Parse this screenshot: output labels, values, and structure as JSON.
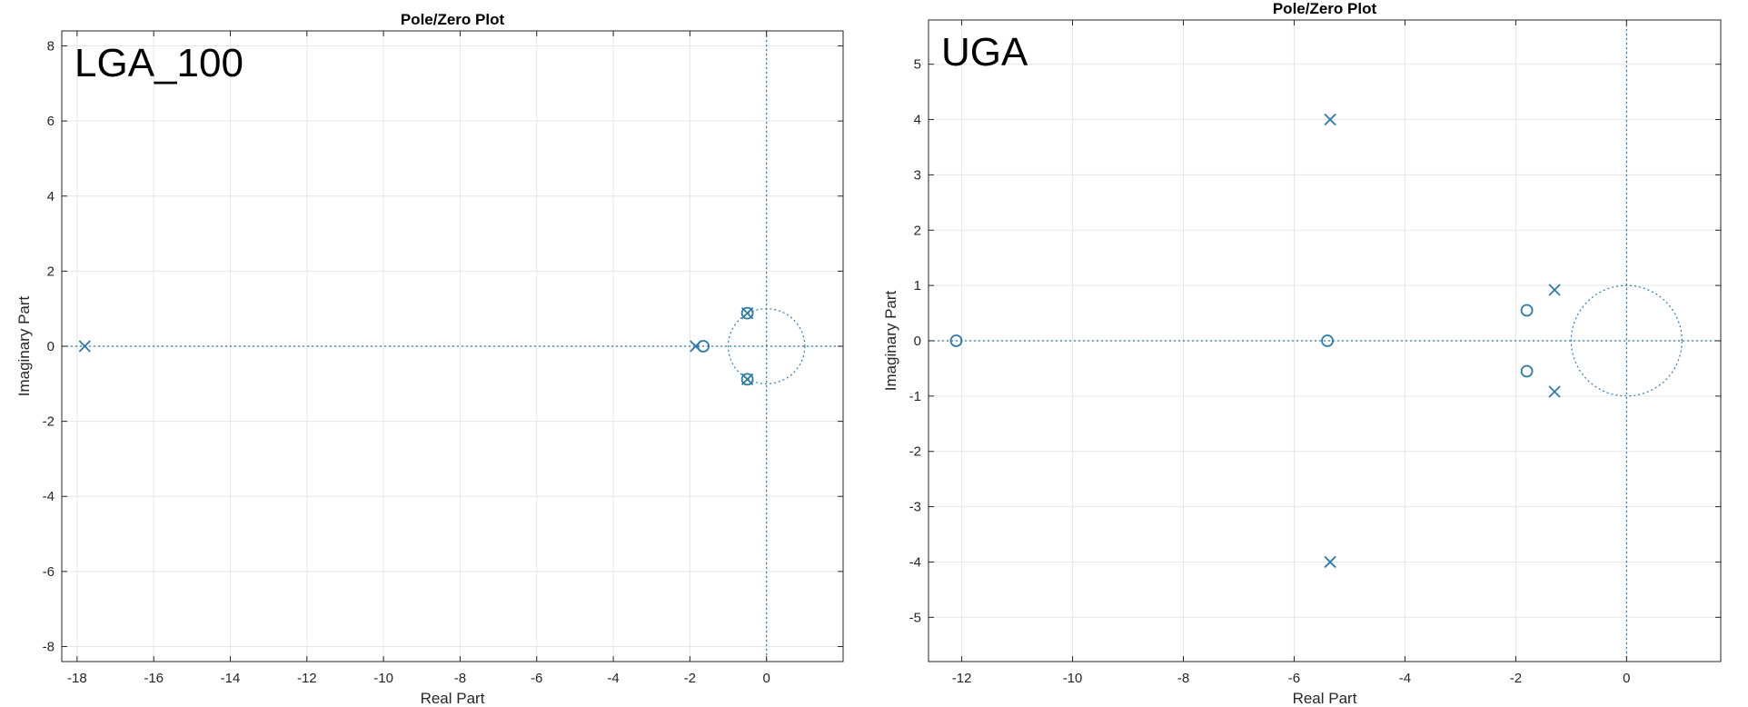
{
  "colors": {
    "marker": "#2a7bae",
    "grid": "#e6e6e6",
    "axis": "#262626",
    "background": "#ffffff"
  },
  "chart_data": [
    {
      "type": "scatter",
      "title": "Pole/Zero Plot",
      "panel_label": "LGA_100",
      "xlabel": "Real Part",
      "ylabel": "Imaginary Part",
      "xlim": [
        -18.4,
        2.0
      ],
      "ylim": [
        -8.4,
        8.4
      ],
      "xticks": [
        -18,
        -16,
        -14,
        -12,
        -10,
        -8,
        -6,
        -4,
        -2,
        0
      ],
      "yticks": [
        -8,
        -6,
        -4,
        -2,
        0,
        2,
        4,
        6,
        8
      ],
      "grid": true,
      "unit_circle": true,
      "series": [
        {
          "marker": "x",
          "points": [
            [
              -17.8,
              0
            ],
            [
              -1.85,
              0
            ],
            [
              -0.5,
              0.88
            ],
            [
              -0.5,
              -0.88
            ]
          ]
        },
        {
          "marker": "o",
          "points": [
            [
              -1.65,
              0
            ],
            [
              -0.5,
              0.88
            ],
            [
              -0.5,
              -0.88
            ]
          ]
        }
      ]
    },
    {
      "type": "scatter",
      "title": "Pole/Zero Plot",
      "panel_label": "UGA",
      "xlabel": "Real Part",
      "ylabel": "Imaginary Part",
      "xlim": [
        -12.6,
        1.7
      ],
      "ylim": [
        -5.8,
        5.8
      ],
      "xticks": [
        -12,
        -10,
        -8,
        -6,
        -4,
        -2,
        0
      ],
      "yticks": [
        -5,
        -4,
        -3,
        -2,
        -1,
        0,
        1,
        2,
        3,
        4,
        5
      ],
      "grid": true,
      "unit_circle": true,
      "series": [
        {
          "marker": "x",
          "points": [
            [
              -5.35,
              4.0
            ],
            [
              -5.35,
              -4.0
            ],
            [
              -1.3,
              0.92
            ],
            [
              -1.3,
              -0.92
            ]
          ]
        },
        {
          "marker": "o",
          "points": [
            [
              -12.1,
              0
            ],
            [
              -5.4,
              0
            ],
            [
              -1.8,
              0.55
            ],
            [
              -1.8,
              -0.55
            ]
          ]
        }
      ]
    }
  ]
}
